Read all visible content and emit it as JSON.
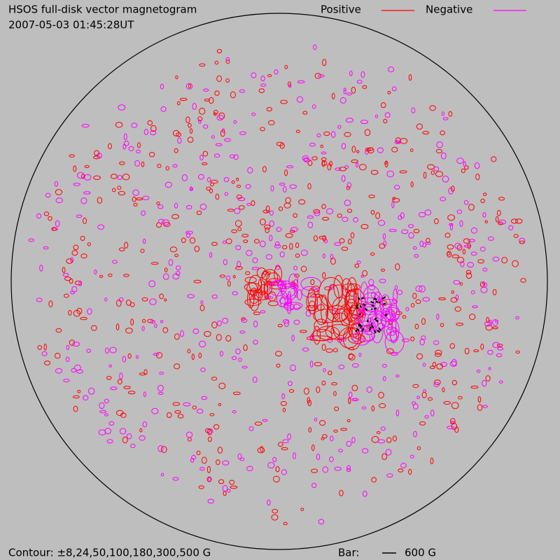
{
  "header": {
    "title": "HSOS full-disk vector magnetogram",
    "timestamp": "2007-05-03 01:45:28UT"
  },
  "legend": {
    "items": [
      {
        "label": "Positive",
        "color": "#ff0000"
      },
      {
        "label": "Negative",
        "color": "#ff00ff"
      }
    ]
  },
  "footer": {
    "contour": "Contour: ±8,24,50,100,180,300,500 G",
    "bar_label": "Bar:",
    "bar_value": "600 G"
  }
}
